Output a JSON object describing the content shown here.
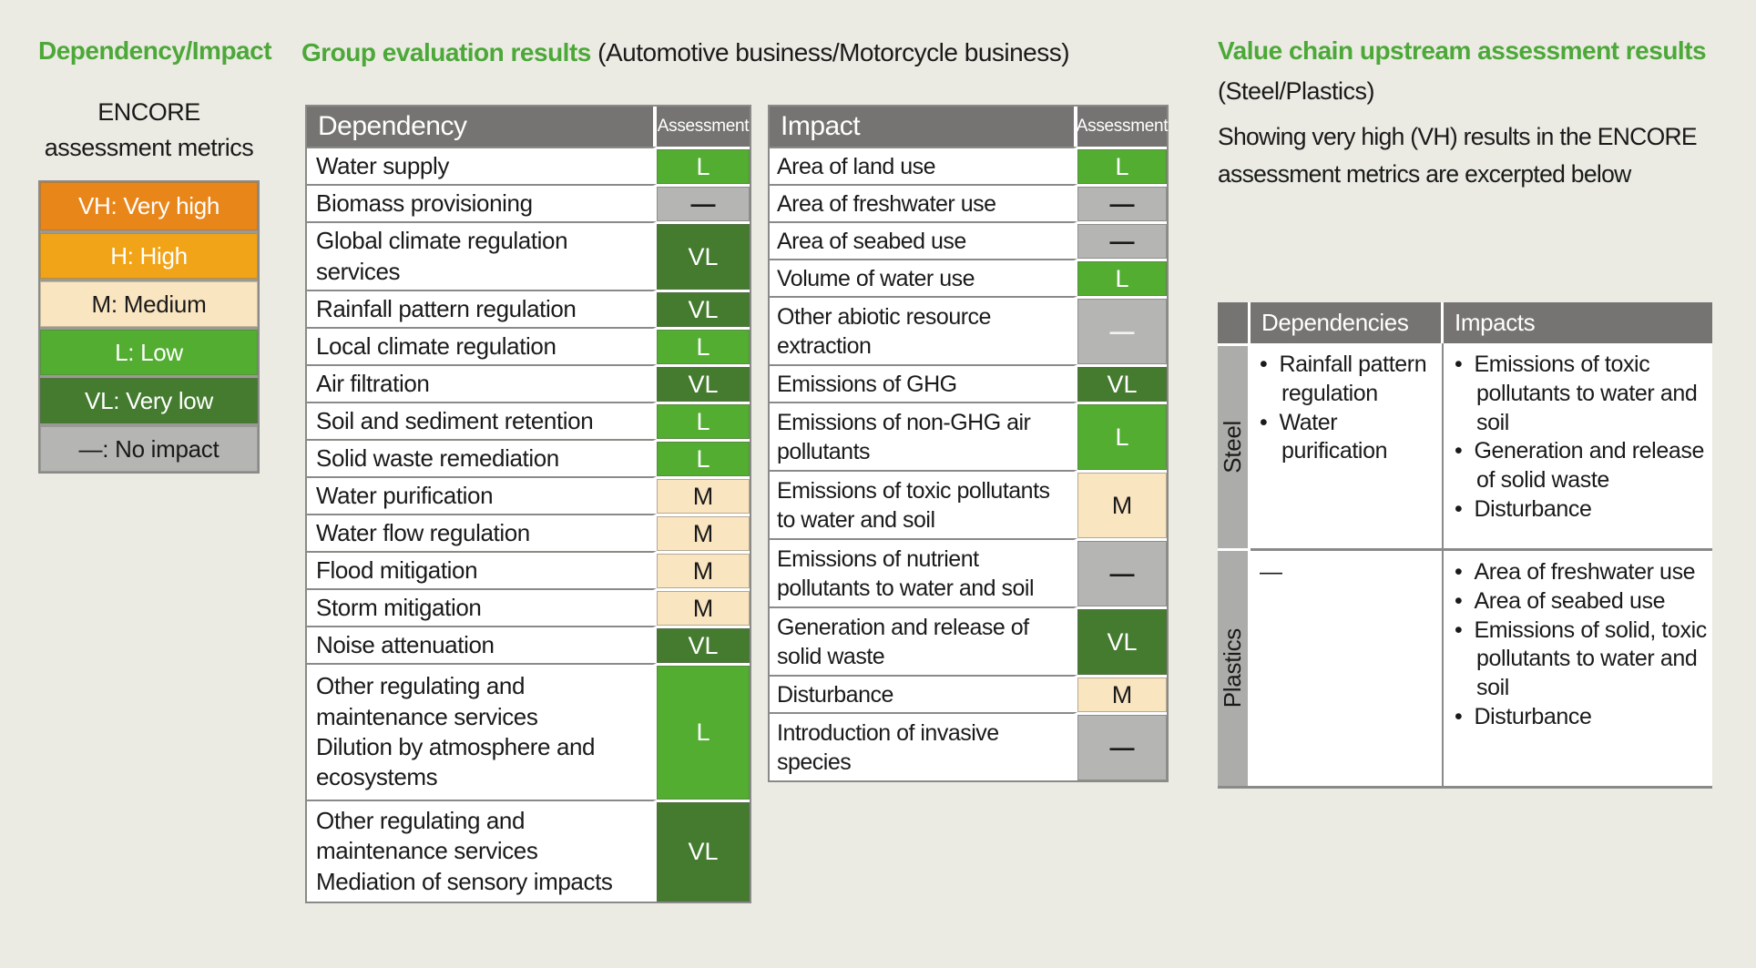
{
  "colors": {
    "page_bg": "#EBEBE3",
    "heading_green": "#4CA838",
    "text": "#1A1A1A",
    "table_header_bg": "#757472",
    "table_header_fg": "#FFFFFF",
    "row_border": "#8A8A88",
    "side_label_bg": "#ACACAA",
    "level_bg": {
      "VH": "#E8861A",
      "H": "#F2A418",
      "M": "#FAE5C1",
      "L": "#52AD31",
      "VL": "#447B2F",
      "NONE": "#B5B5B3",
      "NONE_W": "#B5B5B3"
    },
    "level_fg": {
      "VH": "#FFFFFF",
      "H": "#FFFFFF",
      "M": "#1A1A1A",
      "L": "#FFFFFF",
      "VL": "#FFFFFF",
      "NONE": "#1A1A1A",
      "NONE_W": "#F3F3F0"
    }
  },
  "legend": {
    "title": "Dependency/Impact",
    "subtitle": "ENCORE\nassessment metrics",
    "items": [
      {
        "label": "VH: Very high",
        "level": "VH"
      },
      {
        "label": "H: High",
        "level": "H"
      },
      {
        "label": "M: Medium",
        "level": "M"
      },
      {
        "label": "L: Low",
        "level": "L"
      },
      {
        "label": "VL: Very low",
        "level": "VL"
      },
      {
        "label": "—: No impact",
        "level": "NONE"
      }
    ]
  },
  "group_results": {
    "heading_strong": "Group evaluation results",
    "heading_rest": " (Automotive business/Motorcycle business)",
    "dependency_table": {
      "header": {
        "name": "Dependency",
        "assessment": "Assessment"
      },
      "rows": [
        {
          "name": "Water supply",
          "value": "L",
          "level": "L"
        },
        {
          "name": "Biomass provisioning",
          "value": "—",
          "level": "NONE"
        },
        {
          "name": "Global climate regulation services",
          "value": "VL",
          "level": "VL"
        },
        {
          "name": "Rainfall pattern regulation",
          "value": "VL",
          "level": "VL"
        },
        {
          "name": "Local climate regulation",
          "value": "L",
          "level": "L"
        },
        {
          "name": "Air filtration",
          "value": "VL",
          "level": "VL"
        },
        {
          "name": "Soil and sediment retention",
          "value": "L",
          "level": "L"
        },
        {
          "name": "Solid waste remediation",
          "value": "L",
          "level": "L"
        },
        {
          "name": "Water purification",
          "value": "M",
          "level": "M"
        },
        {
          "name": "Water flow regulation",
          "value": "M",
          "level": "M"
        },
        {
          "name": "Flood mitigation",
          "value": "M",
          "level": "M"
        },
        {
          "name": "Storm mitigation",
          "value": "M",
          "level": "M"
        },
        {
          "name": "Noise attenuation",
          "value": "VL",
          "level": "VL"
        },
        {
          "name": "Other regulating and maintenance services\nDilution by atmosphere and ecosystems",
          "value": "L",
          "level": "L"
        },
        {
          "name": "Other regulating and maintenance services\nMediation of sensory impacts",
          "value": "VL",
          "level": "VL"
        }
      ]
    },
    "impact_table": {
      "header": {
        "name": "Impact",
        "assessment": "Assessment"
      },
      "rows": [
        {
          "name": "Area of land use",
          "value": "L",
          "level": "L"
        },
        {
          "name": "Area of freshwater use",
          "value": "—",
          "level": "NONE"
        },
        {
          "name": "Area of seabed use",
          "value": "—",
          "level": "NONE"
        },
        {
          "name": "Volume of water use",
          "value": "L",
          "level": "L"
        },
        {
          "name": "Other abiotic resource extraction",
          "value": "—",
          "level": "NONE_W"
        },
        {
          "name": "Emissions of GHG",
          "value": "VL",
          "level": "VL"
        },
        {
          "name": "Emissions of non-GHG air pollutants",
          "value": "L",
          "level": "L"
        },
        {
          "name": "Emissions of toxic pollutants to water and soil",
          "value": "M",
          "level": "M"
        },
        {
          "name": "Emissions of nutrient pollutants to water and soil",
          "value": "—",
          "level": "NONE"
        },
        {
          "name": "Generation and release of solid waste",
          "value": "VL",
          "level": "VL"
        },
        {
          "name": "Disturbance",
          "value": "M",
          "level": "M"
        },
        {
          "name": "Introduction of invasive species",
          "value": "—",
          "level": "NONE"
        }
      ]
    }
  },
  "value_chain": {
    "heading": "Value chain upstream assessment results",
    "subheading": "(Steel/Plastics)",
    "description": "Showing very high (VH) results in the ENCORE\nassessment metrics are excerpted below",
    "table": {
      "header": {
        "dependencies": "Dependencies",
        "impacts": "Impacts"
      },
      "rows": [
        {
          "label": "Steel",
          "dependencies": [
            "Rainfall pattern regulation",
            "Water purification"
          ],
          "impacts": [
            "Emissions of toxic pollutants to water and soil",
            "Generation and release of solid waste",
            "Disturbance"
          ]
        },
        {
          "label": "Plastics",
          "dependencies_dash": "—",
          "impacts": [
            "Area of freshwater use",
            "Area of seabed use",
            "Emissions of solid, toxic pollutants to water and soil",
            "Disturbance"
          ]
        }
      ]
    }
  }
}
